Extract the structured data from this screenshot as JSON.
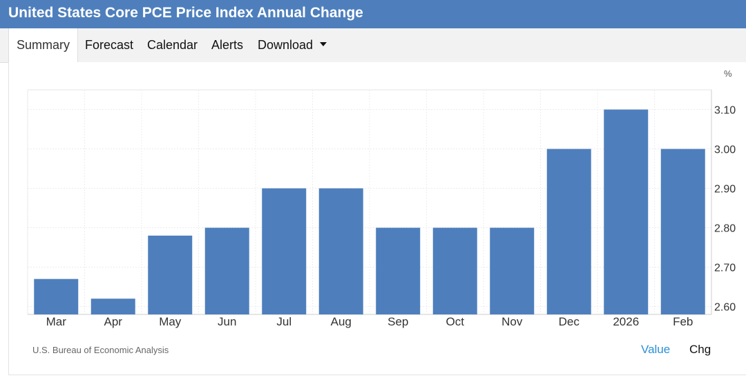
{
  "header": {
    "title": "United States Core PCE Price Index Annual Change",
    "background": "#4e7fbc"
  },
  "tabs": [
    {
      "label": "Summary",
      "active": true
    },
    {
      "label": "Forecast",
      "active": false
    },
    {
      "label": "Calendar",
      "active": false
    },
    {
      "label": "Alerts",
      "active": false
    },
    {
      "label": "Download",
      "active": false,
      "dropdown": true
    }
  ],
  "footer": {
    "source": "U.S. Bureau of Economic Analysis",
    "toggle_value": "Value",
    "toggle_chg": "Chg"
  },
  "chart_data": {
    "type": "bar",
    "unit_label": "%",
    "categories": [
      "Mar",
      "Apr",
      "May",
      "Jun",
      "Jul",
      "Aug",
      "Sep",
      "Oct",
      "Nov",
      "Dec",
      "2026",
      "Feb"
    ],
    "values": [
      2.67,
      2.62,
      2.78,
      2.8,
      2.9,
      2.9,
      2.8,
      2.8,
      2.8,
      3.0,
      3.1,
      3.0
    ],
    "y_ticks": [
      "2.60",
      "2.70",
      "2.80",
      "2.90",
      "3.00",
      "3.10"
    ],
    "ylim": [
      2.58,
      3.15
    ],
    "y_axis_position": "right",
    "grid": true,
    "bar_color": "#4e7fbc"
  }
}
